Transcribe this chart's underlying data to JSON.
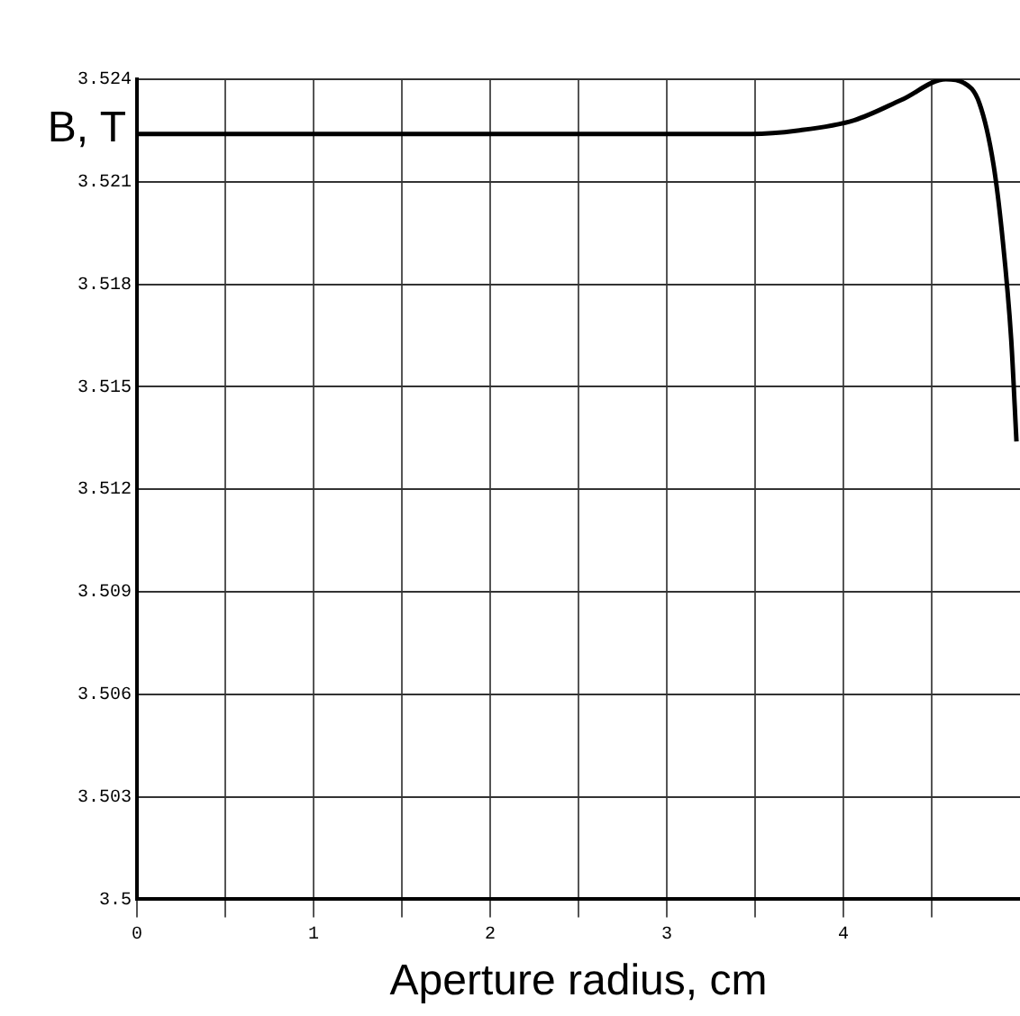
{
  "chart_data": {
    "type": "line",
    "xlabel": "Aperture radius, cm",
    "ylabel": "B, T",
    "x": [
      0,
      1,
      2,
      2.61,
      3.2,
      3.48,
      3.74,
      4.06,
      4.33,
      4.58,
      4.68,
      4.77,
      4.85,
      4.9,
      4.95,
      4.98
    ],
    "series": [
      {
        "color": "#000000",
        "values": [
          3.5224,
          3.5224,
          3.5224,
          3.5224,
          3.5224,
          3.5224,
          3.5225,
          3.5228,
          3.5234,
          3.524,
          3.5239,
          3.5233,
          3.5215,
          3.5194,
          3.5164,
          3.5134
        ]
      }
    ],
    "xlim": [
      0,
      5
    ],
    "xticks": [
      0,
      {
        "value": 0.5,
        "label": null
      },
      1,
      {
        "value": 1.5,
        "label": null
      },
      2,
      {
        "value": 2.5,
        "label": null
      },
      3,
      {
        "value": 3.5,
        "label": null
      },
      4,
      {
        "value": 4.5,
        "label": null
      }
    ],
    "ylim": [
      3.5,
      3.524
    ],
    "yticks": [
      3.5,
      3.503,
      3.506,
      3.509,
      3.512,
      3.515,
      3.518,
      3.521,
      3.524
    ],
    "grid": true,
    "legend": false,
    "marker": "none",
    "line_style": "solid"
  }
}
